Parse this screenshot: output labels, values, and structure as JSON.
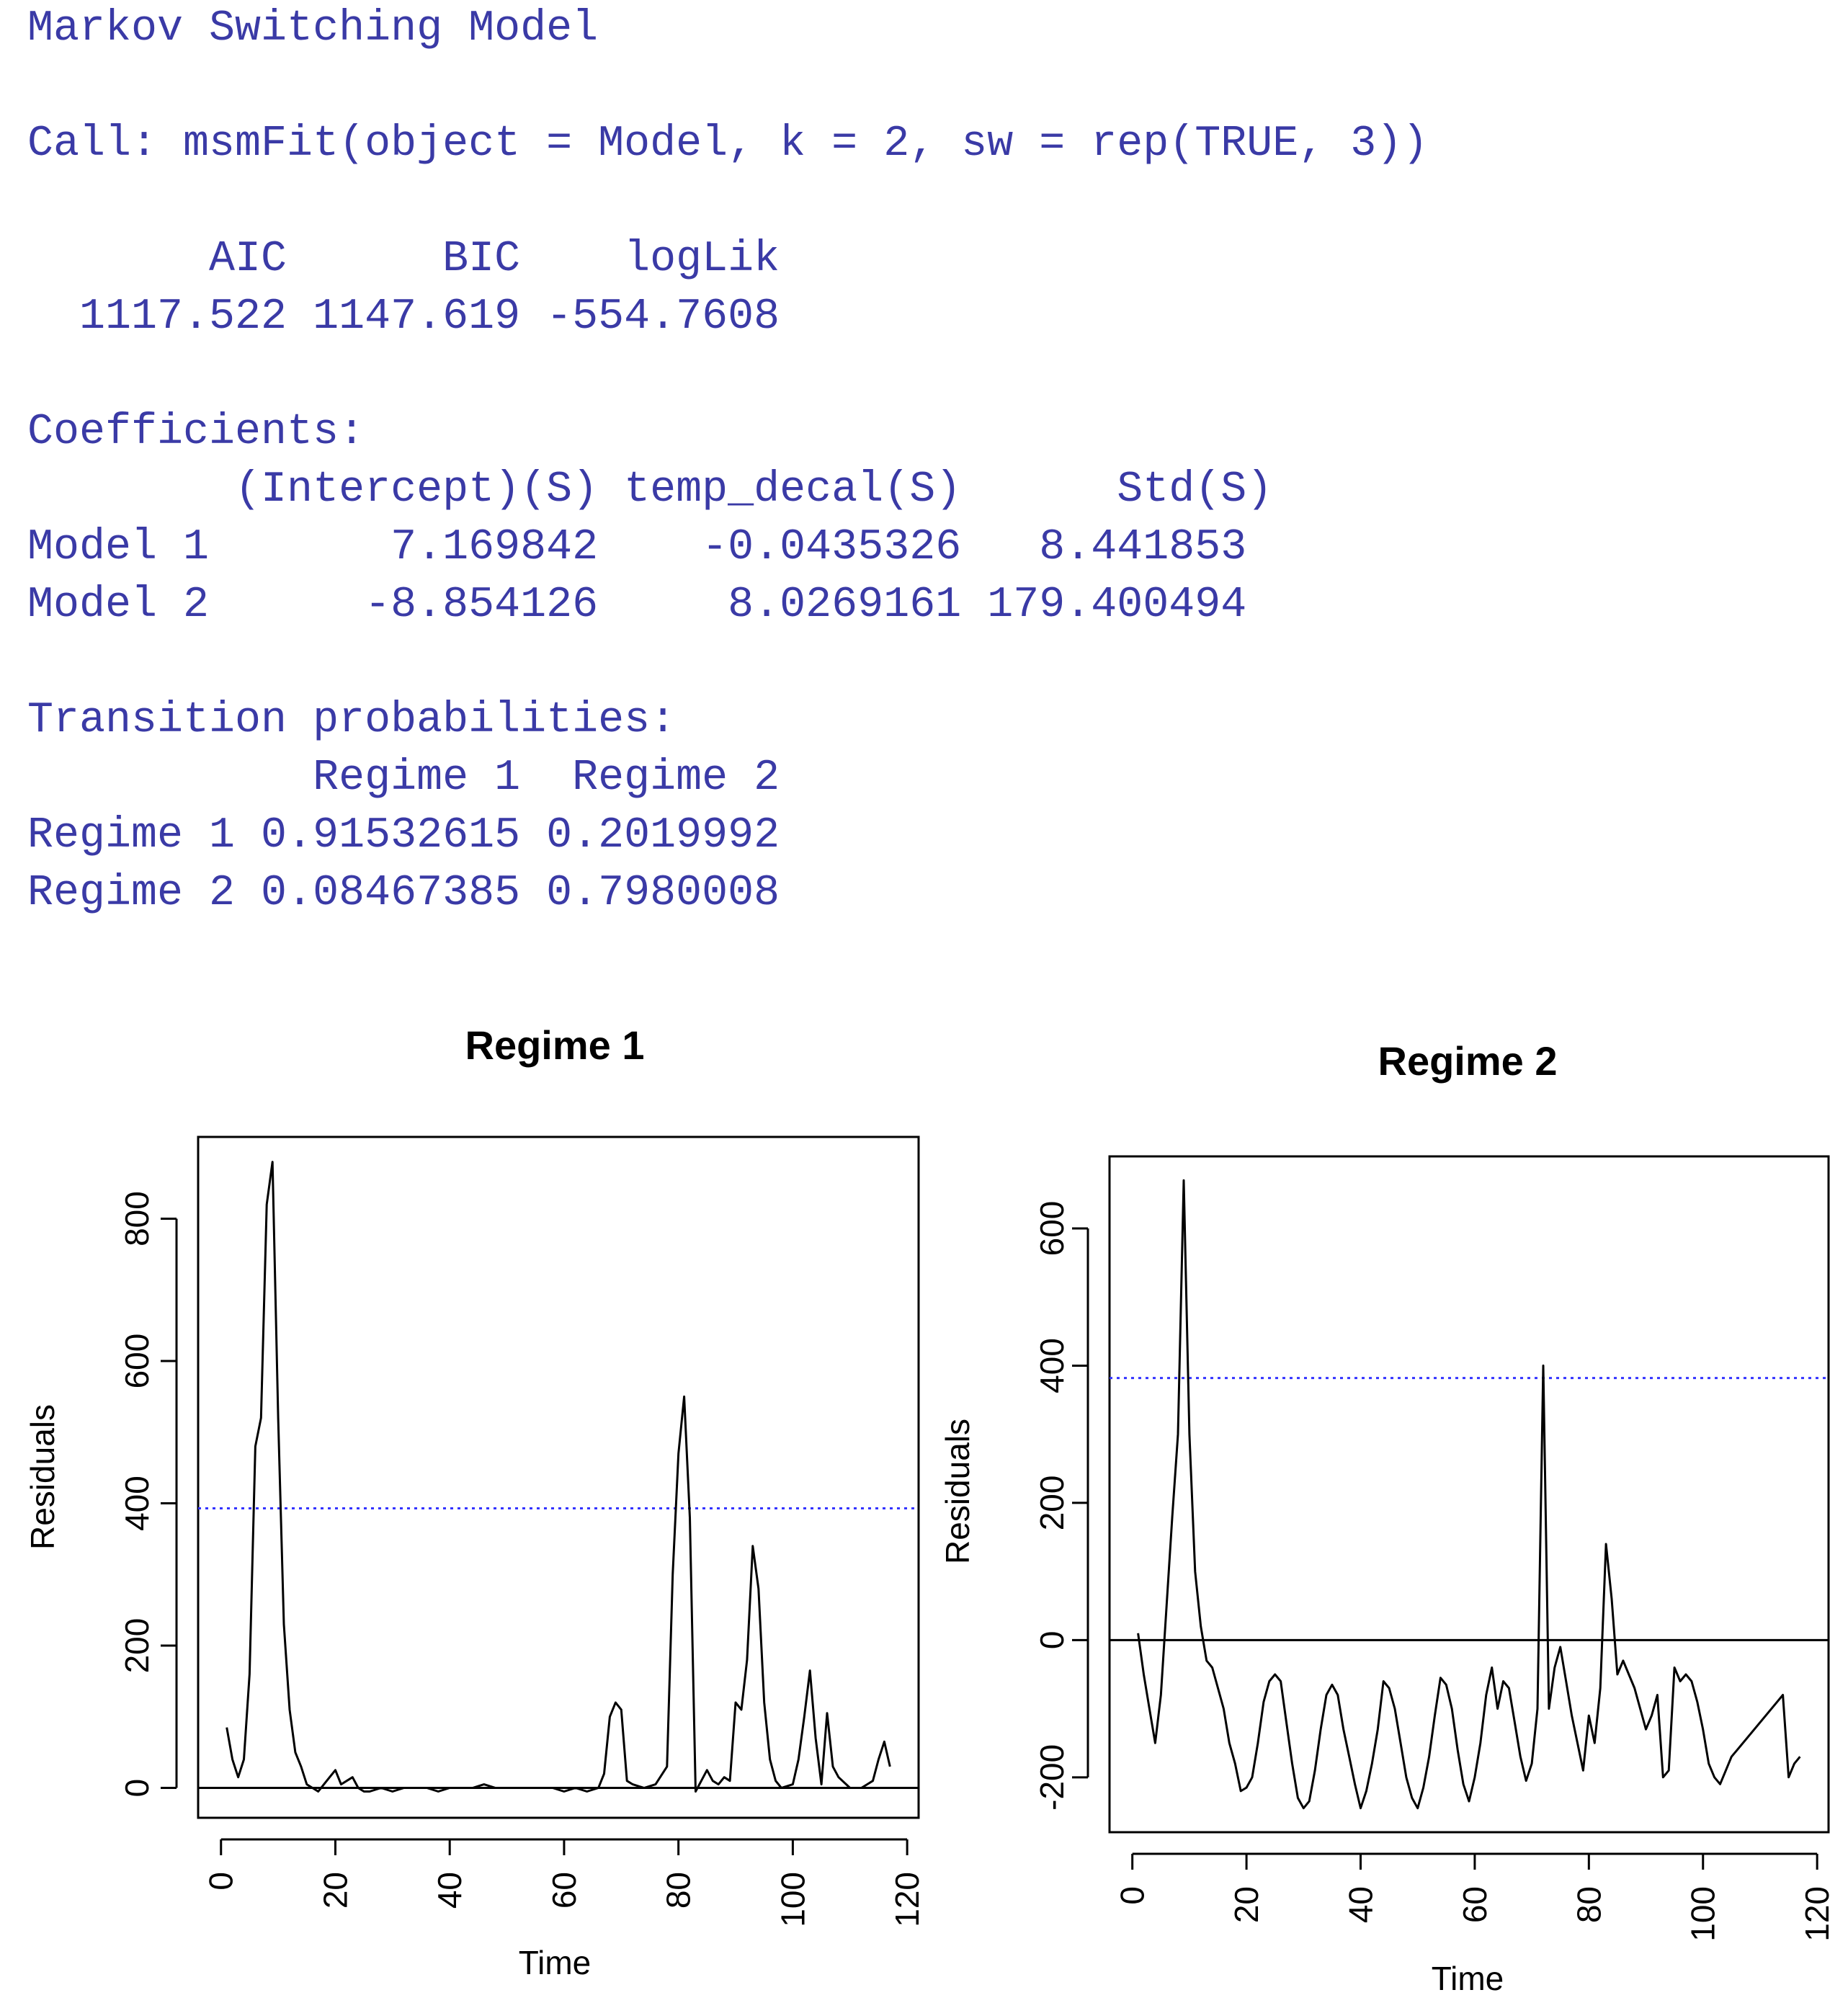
{
  "console": {
    "lines": [
      "Markov Switching Model",
      "",
      "Call: msmFit(object = Model, k = 2, sw = rep(TRUE, 3))",
      "",
      "       AIC      BIC    logLik",
      "  1117.522 1147.619 -554.7608",
      "",
      "Coefficients:",
      "        (Intercept)(S) temp_decal(S)      Std(S)",
      "Model 1       7.169842    -0.0435326   8.441853",
      "Model 2      -8.854126     8.0269161 179.400494",
      "",
      "Transition probabilities:",
      "           Regime 1  Regime 2",
      "Regime 1 0.91532615 0.2019992",
      "Regime 2 0.08467385 0.7980008"
    ]
  },
  "chart_data": [
    {
      "type": "line",
      "title": "Regime 1",
      "xlabel": "Time",
      "ylabel": "Residuals",
      "xlim": [
        -4,
        122
      ],
      "ylim": [
        -42,
        915
      ],
      "xticks": [
        0,
        20,
        40,
        60,
        80,
        100,
        120
      ],
      "yticks": [
        0,
        200,
        400,
        600,
        800
      ],
      "hlines": [
        {
          "y": 0,
          "color": "#000000",
          "style": "solid"
        },
        {
          "y": 393,
          "color": "#3333ff",
          "style": "dotted"
        }
      ],
      "series": [
        {
          "color": "#000000",
          "x": [
            1,
            2,
            3,
            4,
            5,
            6,
            7,
            8,
            9,
            10,
            11,
            12,
            13,
            14,
            15,
            16,
            17,
            18,
            19,
            20,
            21,
            22,
            23,
            24,
            25,
            26,
            28,
            30,
            32,
            34,
            36,
            38,
            40,
            42,
            44,
            46,
            48,
            50,
            52,
            54,
            56,
            58,
            60,
            62,
            64,
            66,
            67,
            68,
            69,
            70,
            71,
            72,
            74,
            76,
            78,
            79,
            80,
            81,
            82,
            83,
            84,
            85,
            86,
            87,
            88,
            89,
            90,
            91,
            92,
            93,
            94,
            95,
            96,
            97,
            98,
            100,
            101,
            102,
            103,
            104,
            105,
            106,
            107,
            108,
            110,
            112,
            113,
            114,
            115,
            116,
            117
          ],
          "y": [
            85,
            40,
            15,
            40,
            160,
            480,
            520,
            820,
            880,
            520,
            230,
            110,
            50,
            30,
            5,
            0,
            -5,
            5,
            15,
            25,
            5,
            10,
            15,
            0,
            -5,
            -5,
            0,
            -5,
            0,
            0,
            0,
            -5,
            0,
            0,
            0,
            5,
            0,
            0,
            0,
            0,
            0,
            0,
            -5,
            0,
            -5,
            0,
            20,
            100,
            120,
            110,
            10,
            5,
            0,
            5,
            30,
            300,
            470,
            550,
            380,
            -5,
            10,
            25,
            10,
            5,
            15,
            10,
            120,
            110,
            180,
            340,
            280,
            120,
            40,
            10,
            0,
            5,
            40,
            100,
            165,
            70,
            5,
            105,
            30,
            15,
            0,
            0,
            5,
            10,
            40,
            65,
            30
          ]
        }
      ]
    },
    {
      "type": "line",
      "title": "Regime 2",
      "xlabel": "Time",
      "ylabel": "Residuals",
      "xlim": [
        -4,
        122
      ],
      "ylim": [
        -280,
        705
      ],
      "xticks": [
        0,
        20,
        40,
        60,
        80,
        100,
        120
      ],
      "yticks": [
        -200,
        0,
        200,
        400,
        600
      ],
      "hlines": [
        {
          "y": 0,
          "color": "#000000",
          "style": "solid"
        },
        {
          "y": 382,
          "color": "#3333ff",
          "style": "dotted"
        }
      ],
      "series": [
        {
          "color": "#000000",
          "x": [
            1,
            2,
            3,
            4,
            5,
            6,
            7,
            8,
            9,
            10,
            11,
            12,
            13,
            14,
            15,
            16,
            17,
            18,
            19,
            20,
            21,
            22,
            23,
            24,
            25,
            26,
            27,
            28,
            29,
            30,
            31,
            32,
            33,
            34,
            35,
            36,
            37,
            38,
            39,
            40,
            41,
            42,
            43,
            44,
            45,
            46,
            47,
            48,
            49,
            50,
            51,
            52,
            53,
            54,
            55,
            56,
            57,
            58,
            59,
            60,
            61,
            62,
            63,
            64,
            65,
            66,
            67,
            68,
            69,
            70,
            71,
            72,
            73,
            74,
            75,
            76,
            77,
            78,
            79,
            80,
            81,
            82,
            83,
            84,
            85,
            86,
            87,
            88,
            89,
            90,
            91,
            92,
            93,
            94,
            95,
            96,
            97,
            98,
            99,
            100,
            101,
            102,
            103,
            104,
            105,
            106,
            107,
            108,
            109,
            110,
            111,
            112,
            113,
            114,
            115,
            116,
            117
          ],
          "y": [
            10,
            -50,
            -100,
            -150,
            -80,
            50,
            180,
            300,
            670,
            300,
            100,
            20,
            -30,
            -40,
            -70,
            -100,
            -150,
            -180,
            -220,
            -215,
            -200,
            -150,
            -90,
            -60,
            -50,
            -60,
            -120,
            -180,
            -230,
            -245,
            -235,
            -190,
            -130,
            -80,
            -65,
            -80,
            -130,
            -170,
            -210,
            -245,
            -220,
            -180,
            -130,
            -60,
            -70,
            -100,
            -150,
            -200,
            -230,
            -245,
            -215,
            -170,
            -110,
            -55,
            -65,
            -100,
            -160,
            -210,
            -235,
            -200,
            -150,
            -80,
            -40,
            -100,
            -60,
            -70,
            -120,
            -170,
            -205,
            -180,
            -100,
            400,
            -100,
            -40,
            -10,
            -60,
            -110,
            -150,
            -190,
            -110,
            -150,
            -70,
            140,
            60,
            -50,
            -30,
            -50,
            -70,
            -100,
            -130,
            -110,
            -80,
            -200,
            -190,
            -40,
            -60,
            -50,
            -60,
            -90,
            -130,
            -180,
            -200,
            -210,
            -190,
            -170,
            -160,
            -150,
            -140,
            -130,
            -120,
            -110,
            -100,
            -90,
            -80,
            -200,
            -180,
            -170
          ]
        }
      ]
    }
  ]
}
